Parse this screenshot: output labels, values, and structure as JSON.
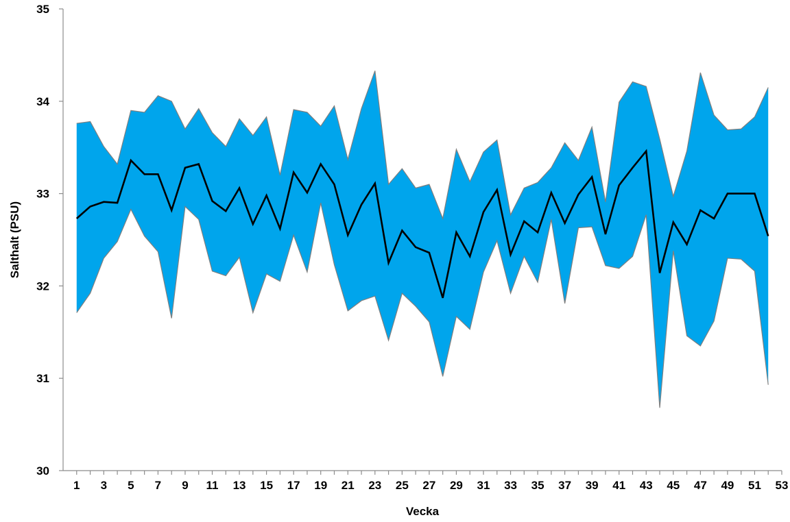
{
  "chart_data": {
    "type": "area",
    "xlabel": "Vecka",
    "ylabel": "Salthalt (PSU)",
    "xlim": [
      0,
      53
    ],
    "ylim": [
      30,
      35
    ],
    "grid": false,
    "x_ticks": [
      "1",
      "3",
      "5",
      "7",
      "9",
      "11",
      "13",
      "15",
      "17",
      "19",
      "21",
      "23",
      "25",
      "27",
      "29",
      "31",
      "33",
      "35",
      "37",
      "39",
      "41",
      "43",
      "45",
      "47",
      "49",
      "51",
      "53"
    ],
    "y_ticks": [
      "30",
      "31",
      "32",
      "33",
      "34",
      "35"
    ],
    "colors": {
      "band": "#00a5ec",
      "band_edge": "#7f7f7f",
      "mean_line": "#000000",
      "axis": "#8c8c8c"
    },
    "x": [
      1,
      2,
      3,
      4,
      5,
      6,
      7,
      8,
      9,
      10,
      11,
      12,
      13,
      14,
      15,
      16,
      17,
      18,
      19,
      20,
      21,
      22,
      23,
      24,
      25,
      26,
      27,
      28,
      29,
      30,
      31,
      32,
      33,
      34,
      35,
      36,
      37,
      38,
      39,
      40,
      41,
      42,
      43,
      44,
      45,
      46,
      47,
      48,
      49,
      50,
      51,
      52
    ],
    "series": [
      {
        "role": "max",
        "values": [
          33.76,
          33.78,
          33.51,
          33.32,
          33.9,
          33.88,
          34.06,
          34.0,
          33.7,
          33.92,
          33.66,
          33.51,
          33.81,
          33.63,
          33.83,
          33.2,
          33.91,
          33.88,
          33.73,
          33.95,
          33.37,
          33.92,
          34.33,
          33.1,
          33.27,
          33.06,
          33.1,
          32.73,
          33.48,
          33.13,
          33.45,
          33.58,
          32.77,
          33.06,
          33.12,
          33.28,
          33.55,
          33.36,
          33.72,
          32.91,
          33.99,
          34.21,
          34.16,
          33.59,
          32.97,
          33.46,
          34.31,
          33.85,
          33.69,
          33.7,
          33.83,
          34.15
        ]
      },
      {
        "role": "min",
        "values": [
          31.71,
          31.92,
          32.3,
          32.48,
          32.83,
          32.54,
          32.37,
          31.65,
          32.86,
          32.72,
          32.16,
          32.11,
          32.31,
          31.71,
          32.13,
          32.05,
          32.55,
          32.15,
          32.9,
          32.23,
          31.73,
          31.84,
          31.89,
          31.41,
          31.92,
          31.78,
          31.61,
          31.02,
          31.67,
          31.53,
          32.15,
          32.49,
          31.92,
          32.32,
          32.04,
          32.72,
          31.81,
          32.63,
          32.64,
          32.22,
          32.19,
          32.32,
          32.77,
          30.68,
          32.38,
          31.46,
          31.35,
          31.62,
          32.3,
          32.29,
          32.16,
          30.93
        ]
      },
      {
        "role": "mean",
        "values": [
          32.73,
          32.86,
          32.91,
          32.9,
          33.36,
          33.21,
          33.21,
          32.82,
          33.28,
          33.32,
          32.92,
          32.81,
          33.06,
          32.67,
          32.98,
          32.62,
          33.23,
          33.01,
          33.32,
          33.1,
          32.55,
          32.88,
          33.11,
          32.25,
          32.6,
          32.42,
          32.36,
          31.87,
          32.58,
          32.32,
          32.8,
          33.04,
          32.34,
          32.7,
          32.58,
          33.01,
          32.68,
          32.99,
          33.18,
          32.56,
          33.09,
          33.28,
          33.46,
          32.14,
          32.69,
          32.45,
          32.82,
          32.73,
          33.0,
          33.0,
          33.0,
          32.54
        ]
      }
    ]
  }
}
